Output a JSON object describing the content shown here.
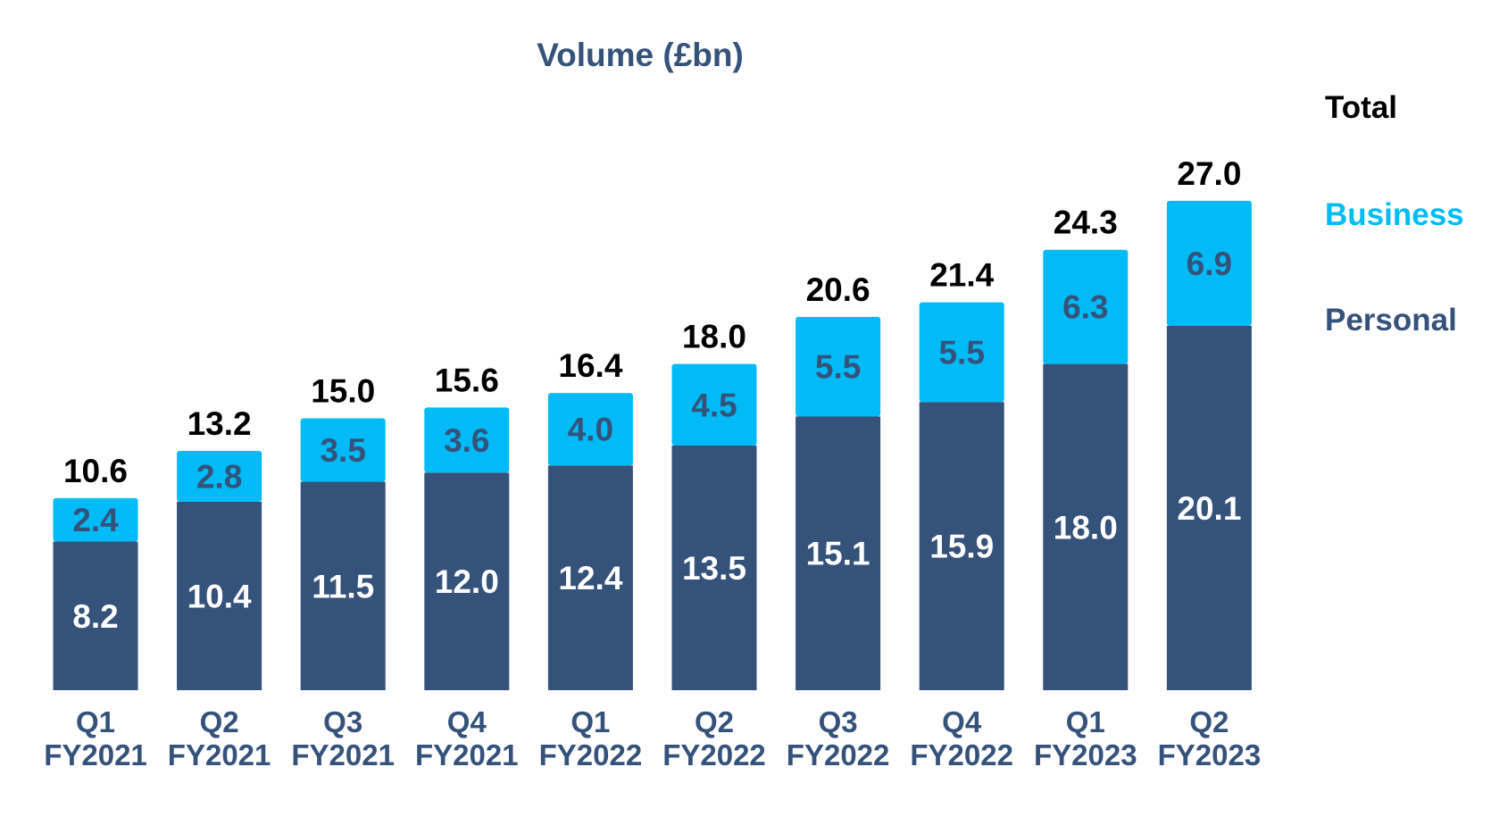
{
  "chart_data": {
    "type": "bar",
    "stacked": true,
    "title": "Volume (£bn)",
    "categories": [
      [
        "Q1",
        "FY2021"
      ],
      [
        "Q2",
        "FY2021"
      ],
      [
        "Q3",
        "FY2021"
      ],
      [
        "Q4",
        "FY2021"
      ],
      [
        "Q1",
        "FY2022"
      ],
      [
        "Q2",
        "FY2022"
      ],
      [
        "Q3",
        "FY2022"
      ],
      [
        "Q4",
        "FY2022"
      ],
      [
        "Q1",
        "FY2023"
      ],
      [
        "Q2",
        "FY2023"
      ]
    ],
    "series": [
      {
        "name": "Personal",
        "color": "#34527a",
        "values": [
          8.2,
          10.4,
          11.5,
          12.0,
          12.4,
          13.5,
          15.1,
          15.9,
          18.0,
          20.1
        ]
      },
      {
        "name": "Business",
        "color": "#00bbf5",
        "values": [
          2.4,
          2.8,
          3.5,
          3.6,
          4.0,
          4.5,
          5.5,
          5.5,
          6.3,
          6.9
        ]
      }
    ],
    "totals": [
      10.6,
      13.2,
      15.0,
      15.6,
      16.4,
      18.0,
      20.6,
      21.4,
      24.3,
      27.0
    ],
    "legend": {
      "position": "right",
      "items": [
        {
          "label": "Total",
          "color": "#000000"
        },
        {
          "label": "Business",
          "color": "#00bbf5"
        },
        {
          "label": "Personal",
          "color": "#34527a"
        }
      ]
    },
    "grid": false,
    "xlabel": "",
    "ylabel": ""
  }
}
